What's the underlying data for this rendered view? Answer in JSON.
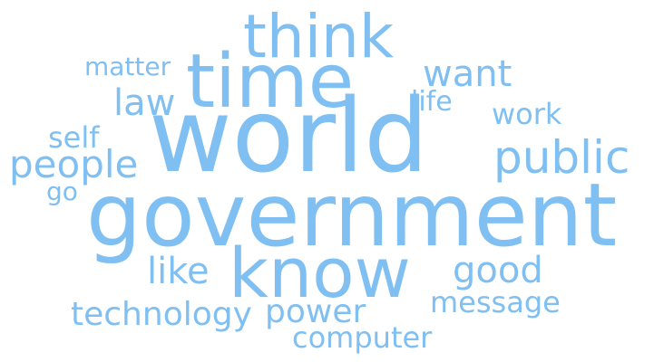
{
  "palette": {
    "background": "#ffffff",
    "word_color": "#7fbff2"
  },
  "cloud": {
    "words": {
      "world": "world",
      "government": "government",
      "time": "time",
      "think": "think",
      "know": "know",
      "public": "public",
      "people": "people",
      "want": "want",
      "good": "good",
      "law": "law",
      "like": "like",
      "power": "power",
      "technology": "technology",
      "work": "work",
      "message": "message",
      "computer": "computer",
      "self": "self",
      "matter": "matter",
      "life": "life",
      "go": "go"
    }
  }
}
